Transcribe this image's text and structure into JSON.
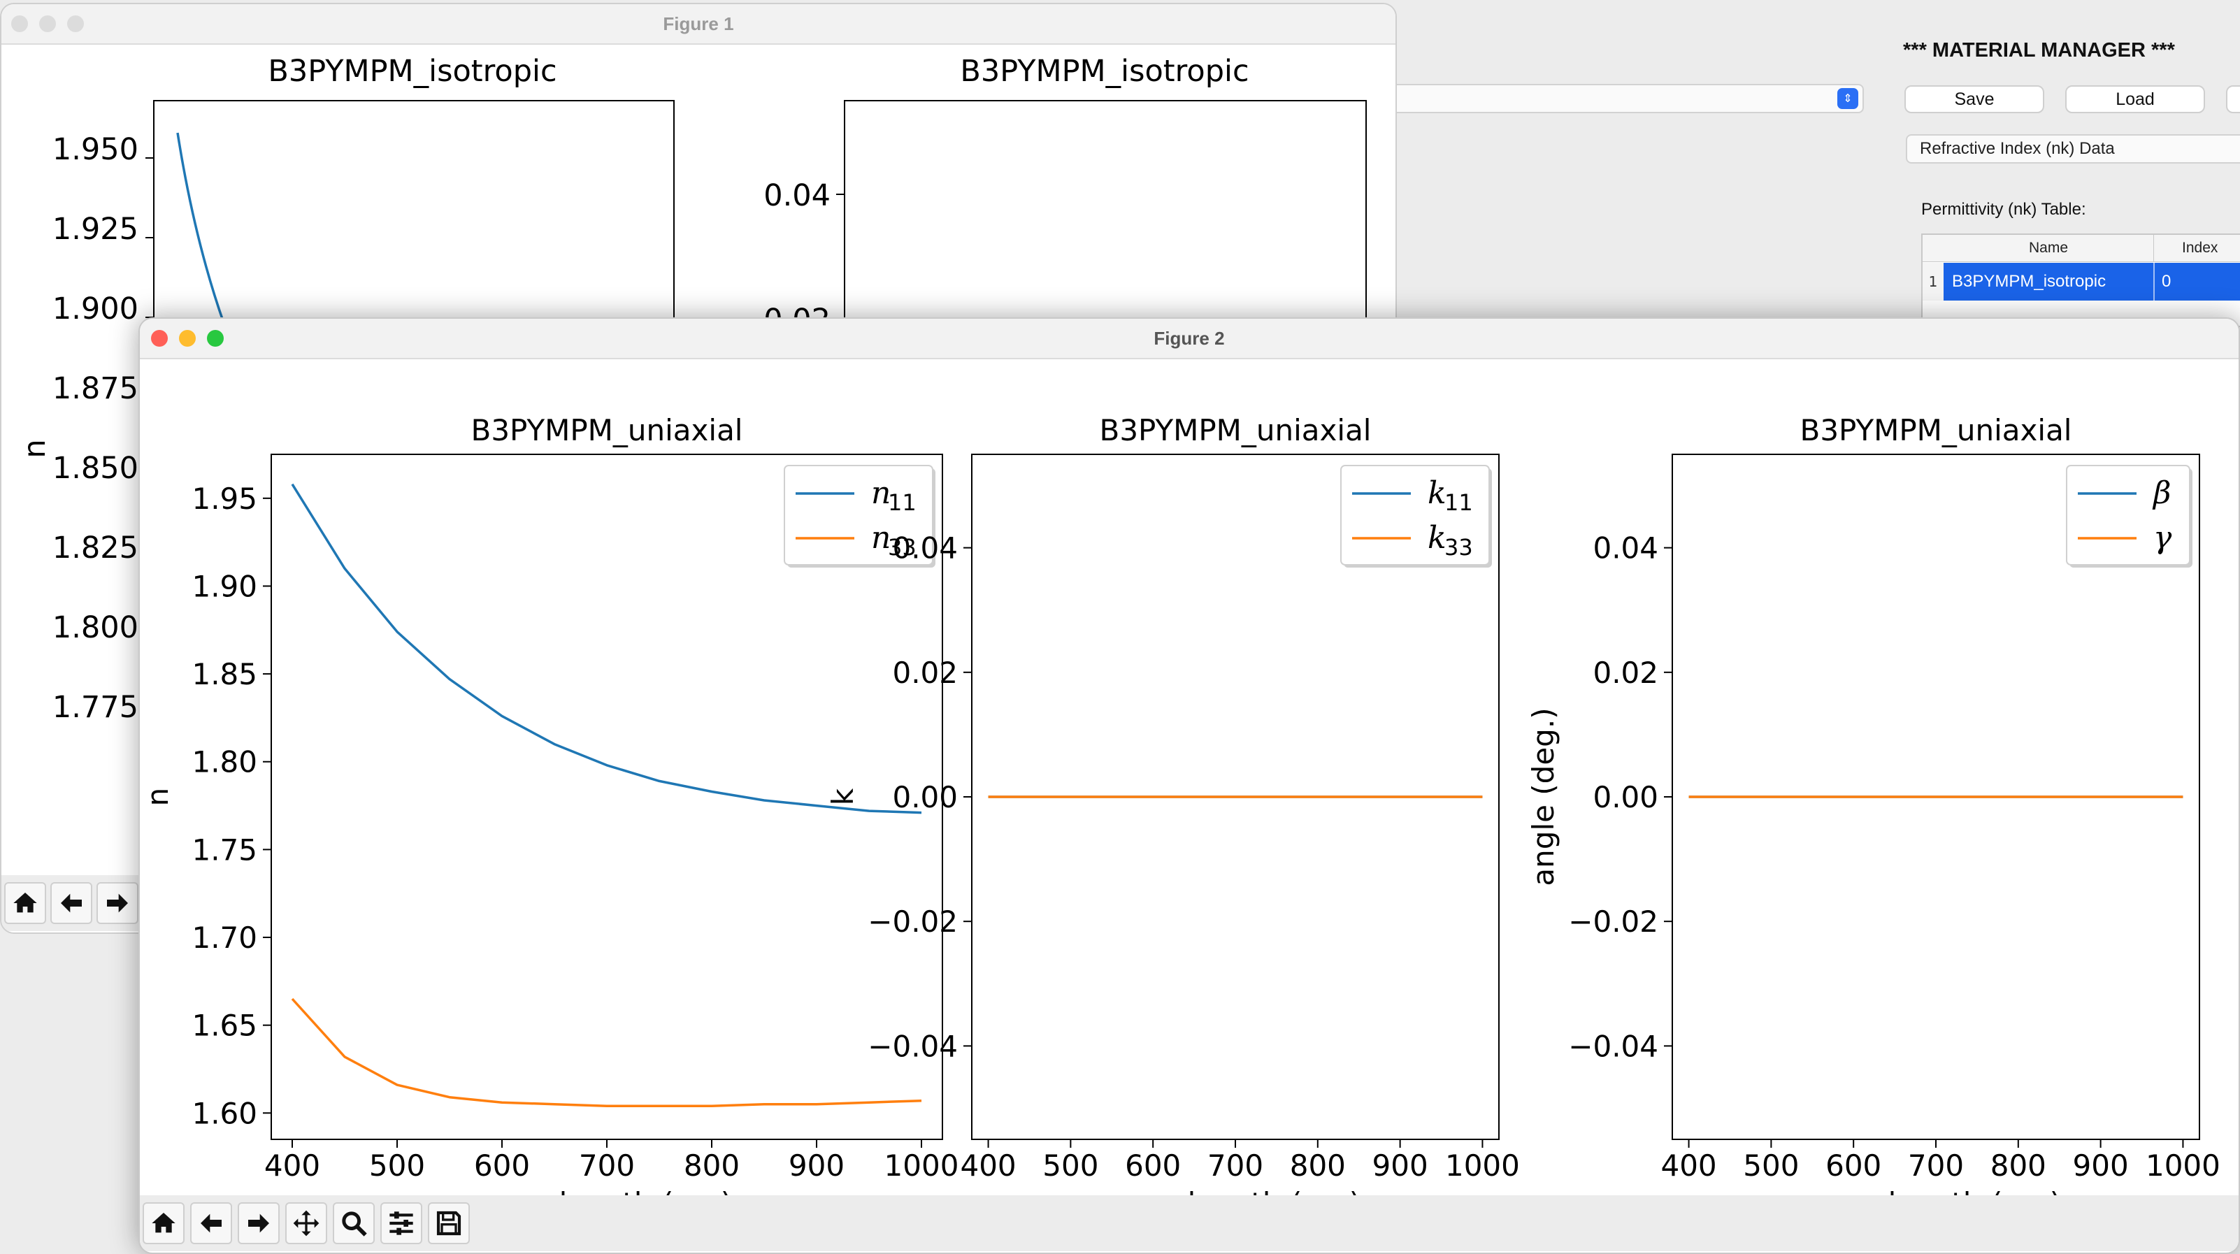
{
  "material_manager": {
    "title": "*** MATERIAL MANAGER ***",
    "save_label": "Save",
    "load_label": "Load",
    "data_tab": "Refractive Index (nk) Data",
    "table_label": "Permittivity (nk) Table:",
    "table": {
      "columns": [
        "Name",
        "Index"
      ],
      "rows": [
        {
          "num": "1",
          "name": "B3PYMPM_isotropic",
          "index": "0"
        }
      ]
    }
  },
  "figure1": {
    "window_title": "Figure 1",
    "left_axes": {
      "title": "B3PYMPM_isotropic",
      "ylabel": "n",
      "yticks": [
        "1.950",
        "1.925",
        "1.900",
        "1.875",
        "1.850",
        "1.825",
        "1.800",
        "1.775"
      ]
    },
    "right_axes": {
      "title": "B3PYMPM_isotropic",
      "yticks": [
        "0.04",
        "0.02"
      ]
    }
  },
  "figure2": {
    "window_title": "Figure 2",
    "toolbar": [
      "home-icon",
      "back-icon",
      "forward-icon",
      "pan-icon",
      "zoom-icon",
      "configure-icon",
      "save-icon"
    ]
  },
  "colors": {
    "blue": "#1f77b4",
    "orange": "#ff7f0e",
    "selection": "#1a63e8"
  },
  "chart_data": [
    {
      "type": "line",
      "title": "B3PYMPM_uniaxial",
      "xlabel": "wavelength (nm)",
      "ylabel": "n",
      "xlim": [
        380,
        1020
      ],
      "ylim": [
        1.585,
        1.975
      ],
      "xticks": [
        "400",
        "500",
        "600",
        "700",
        "800",
        "900",
        "1000"
      ],
      "yticks": [
        "1.60",
        "1.65",
        "1.70",
        "1.75",
        "1.80",
        "1.85",
        "1.90",
        "1.95"
      ],
      "legend": "top-right",
      "x": [
        400,
        450,
        500,
        550,
        600,
        650,
        700,
        750,
        800,
        850,
        900,
        950,
        1000
      ],
      "series": [
        {
          "name": "n11",
          "label": "n",
          "sub": "11",
          "color": "#1f77b4",
          "values": [
            1.958,
            1.91,
            1.874,
            1.847,
            1.826,
            1.81,
            1.798,
            1.789,
            1.783,
            1.778,
            1.775,
            1.772,
            1.771
          ]
        },
        {
          "name": "n33",
          "label": "n",
          "sub": "33",
          "color": "#ff7f0e",
          "values": [
            1.665,
            1.632,
            1.616,
            1.609,
            1.606,
            1.605,
            1.604,
            1.604,
            1.604,
            1.605,
            1.605,
            1.606,
            1.607
          ]
        }
      ]
    },
    {
      "type": "line",
      "title": "B3PYMPM_uniaxial",
      "xlabel": "wavelength (nm)",
      "ylabel": "k",
      "xlim": [
        380,
        1020
      ],
      "ylim": [
        -0.055,
        0.055
      ],
      "xticks": [
        "400",
        "500",
        "600",
        "700",
        "800",
        "900",
        "1000"
      ],
      "yticks": [
        "−0.04",
        "−0.02",
        "0.00",
        "0.02",
        "0.04"
      ],
      "legend": "top-right",
      "x": [
        400,
        1000
      ],
      "series": [
        {
          "name": "k11",
          "label": "k",
          "sub": "11",
          "color": "#1f77b4",
          "values": [
            0,
            0
          ]
        },
        {
          "name": "k33",
          "label": "k",
          "sub": "33",
          "color": "#ff7f0e",
          "values": [
            0,
            0
          ]
        }
      ]
    },
    {
      "type": "line",
      "title": "B3PYMPM_uniaxial",
      "xlabel": "wavelength (nm)",
      "ylabel": "angle (deg.)",
      "xlim": [
        380,
        1020
      ],
      "ylim": [
        -0.055,
        0.055
      ],
      "xticks": [
        "400",
        "500",
        "600",
        "700",
        "800",
        "900",
        "1000"
      ],
      "yticks": [
        "−0.04",
        "−0.02",
        "0.00",
        "0.02",
        "0.04"
      ],
      "legend": "top-right",
      "x": [
        400,
        1000
      ],
      "series": [
        {
          "name": "beta",
          "label": "β",
          "sub": "",
          "color": "#1f77b4",
          "values": [
            0,
            0
          ]
        },
        {
          "name": "gamma",
          "label": "γ",
          "sub": "",
          "color": "#ff7f0e",
          "values": [
            0,
            0
          ]
        }
      ]
    }
  ]
}
